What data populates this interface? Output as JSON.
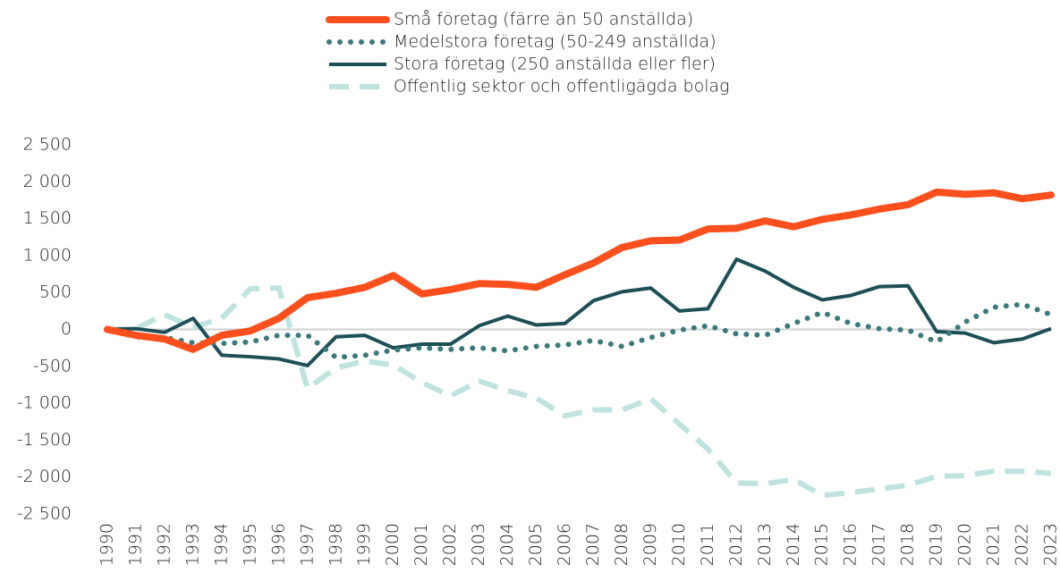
{
  "chart_data": {
    "type": "line",
    "categories": [
      "1990",
      "1991",
      "1992",
      "1993",
      "1994",
      "1995",
      "1996",
      "1997",
      "1998",
      "1999",
      "2000",
      "2001",
      "2002",
      "2003",
      "2004",
      "2005",
      "2006",
      "2007",
      "2008",
      "2009",
      "2010",
      "2011",
      "2012",
      "2013",
      "2014",
      "2015",
      "2016",
      "2017",
      "2018",
      "2019",
      "2020",
      "2021",
      "2022",
      "2023"
    ],
    "series": [
      {
        "name": "Små företag (färre än 50 anställda)",
        "color": "#fc4f1e",
        "style": "solid",
        "values": [
          0,
          -80,
          -130,
          -270,
          -80,
          -20,
          150,
          430,
          490,
          570,
          730,
          480,
          540,
          620,
          610,
          570,
          740,
          900,
          1110,
          1200,
          1210,
          1360,
          1370,
          1470,
          1390,
          1490,
          1550,
          1630,
          1690,
          1860,
          1830,
          1850,
          1770,
          1820
        ]
      },
      {
        "name": "Medelstora företag (50-249 anställda)",
        "color": "#3a7a7d",
        "style": "dotted",
        "values": [
          0,
          -100,
          -110,
          -180,
          -190,
          -170,
          -80,
          -80,
          -380,
          -350,
          -280,
          -250,
          -270,
          -250,
          -290,
          -230,
          -210,
          -150,
          -230,
          -110,
          -10,
          50,
          -60,
          -80,
          80,
          230,
          80,
          10,
          -10,
          -170,
          100,
          300,
          340,
          200
        ]
      },
      {
        "name": "Stora företag (250 anställda eller fler)",
        "color": "#1d4f57",
        "style": "solid-thin",
        "values": [
          0,
          10,
          -40,
          150,
          -350,
          -370,
          -400,
          -490,
          -100,
          -80,
          -250,
          -200,
          -200,
          50,
          180,
          60,
          80,
          390,
          510,
          560,
          250,
          280,
          950,
          790,
          570,
          400,
          460,
          580,
          590,
          -30,
          -50,
          -180,
          -130,
          10
        ]
      },
      {
        "name": "Offentlig sektor och offentligägda bolag",
        "color": "#bfe3df",
        "style": "dashed",
        "values": [
          0,
          10,
          200,
          30,
          150,
          550,
          560,
          -800,
          -520,
          -430,
          -480,
          -720,
          -900,
          -700,
          -830,
          -930,
          -1170,
          -1090,
          -1090,
          -940,
          -1280,
          -1620,
          -2080,
          -2090,
          -2030,
          -2250,
          -2210,
          -2160,
          -2110,
          -1990,
          -1980,
          -1920,
          -1920,
          -1950
        ]
      }
    ],
    "ylim": [
      -2500,
      2500
    ],
    "yticks": [
      {
        "value": -2500,
        "label": "-2 500"
      },
      {
        "value": -2000,
        "label": "-2 000"
      },
      {
        "value": -1500,
        "label": "-1 500"
      },
      {
        "value": -1000,
        "label": "-1 000"
      },
      -500,
      0,
      500,
      {
        "value": 1000,
        "label": "1 000"
      },
      {
        "value": 1500,
        "label": "1 500"
      },
      {
        "value": 2000,
        "label": "2 000"
      },
      {
        "value": 2500,
        "label": "2 500"
      }
    ],
    "legend": "top"
  }
}
